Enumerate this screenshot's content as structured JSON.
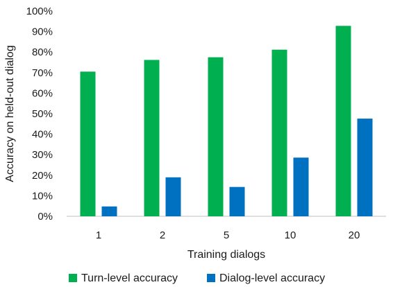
{
  "chart_data": {
    "type": "bar",
    "title": "",
    "xlabel": "Training dialogs",
    "ylabel": "Accuracy on held-out dialog",
    "categories": [
      "1",
      "2",
      "5",
      "10",
      "20"
    ],
    "series": [
      {
        "name": "Turn-level accuracy",
        "color": "#00b050",
        "values": [
          70.5,
          76.2,
          77.5,
          81.2,
          92.8
        ]
      },
      {
        "name": "Dialog-level accuracy",
        "color": "#0070c0",
        "values": [
          4.8,
          19.0,
          14.3,
          28.6,
          47.6
        ]
      }
    ],
    "ylim": [
      0,
      100
    ],
    "yticks": [
      "0%",
      "10%",
      "20%",
      "30%",
      "40%",
      "50%",
      "60%",
      "70%",
      "80%",
      "90%",
      "100%"
    ],
    "grid": false,
    "legend_position": "bottom"
  }
}
